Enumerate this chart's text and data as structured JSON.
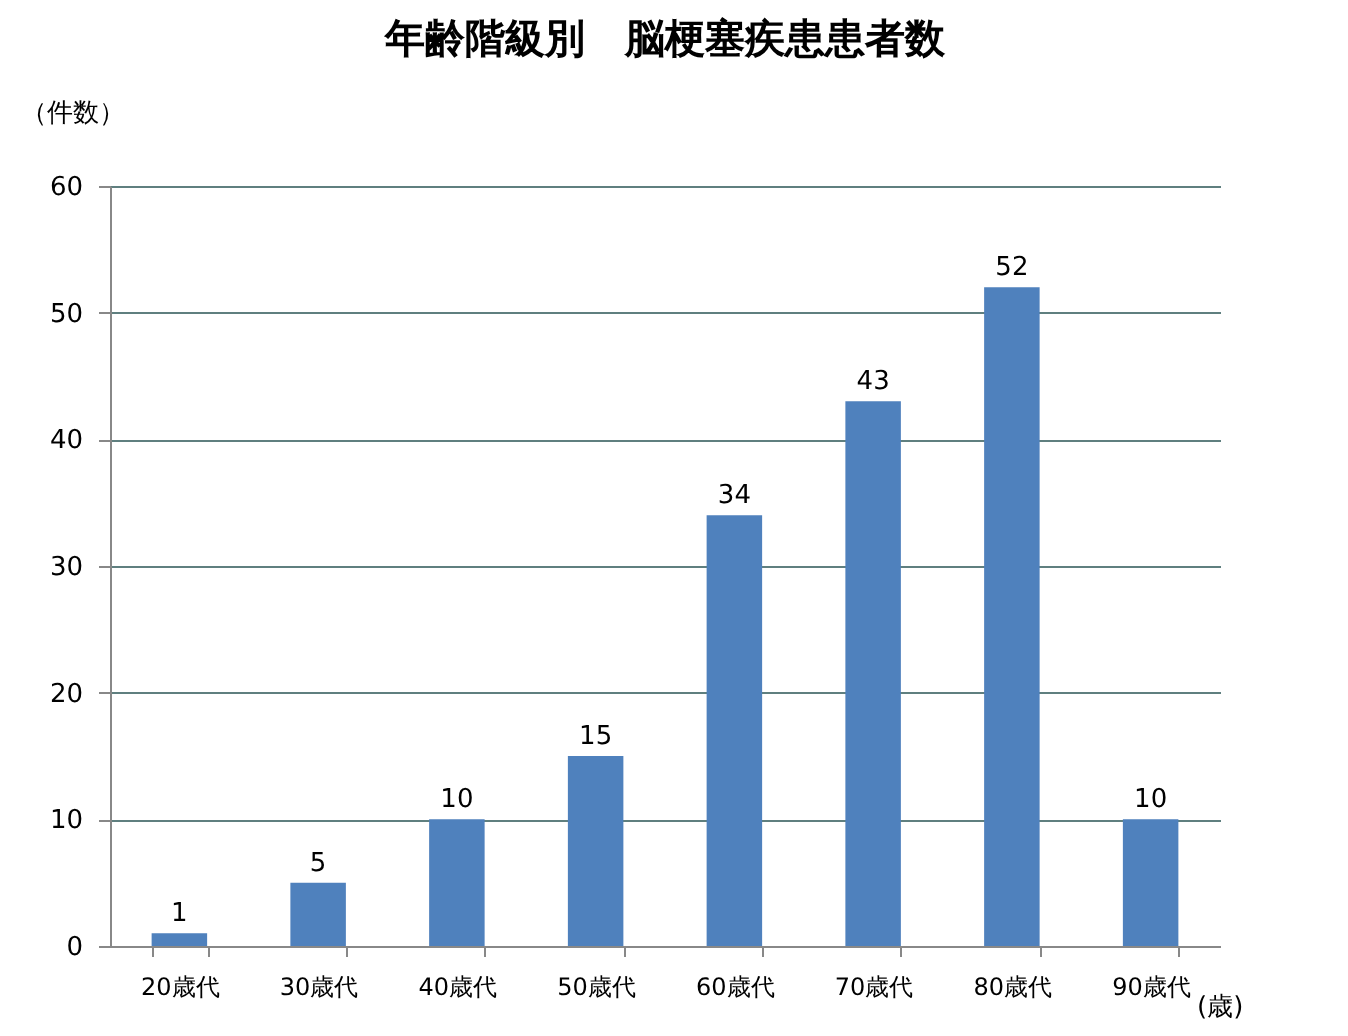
{
  "chart_data": {
    "type": "bar",
    "title": "年齢階級別　脳梗塞疾患患者数",
    "ylabel": "（件数）",
    "xlabel": "(歳)",
    "categories": [
      "20歳代",
      "30歳代",
      "40歳代",
      "50歳代",
      "60歳代",
      "70歳代",
      "80歳代",
      "90歳代"
    ],
    "values": [
      1,
      5,
      10,
      15,
      34,
      43,
      52,
      10
    ],
    "color": "#4f81bd",
    "ylim": [
      0,
      60
    ],
    "yticks": [
      0,
      10,
      20,
      30,
      40,
      50,
      60
    ],
    "grid": "y",
    "data_labels": true
  }
}
